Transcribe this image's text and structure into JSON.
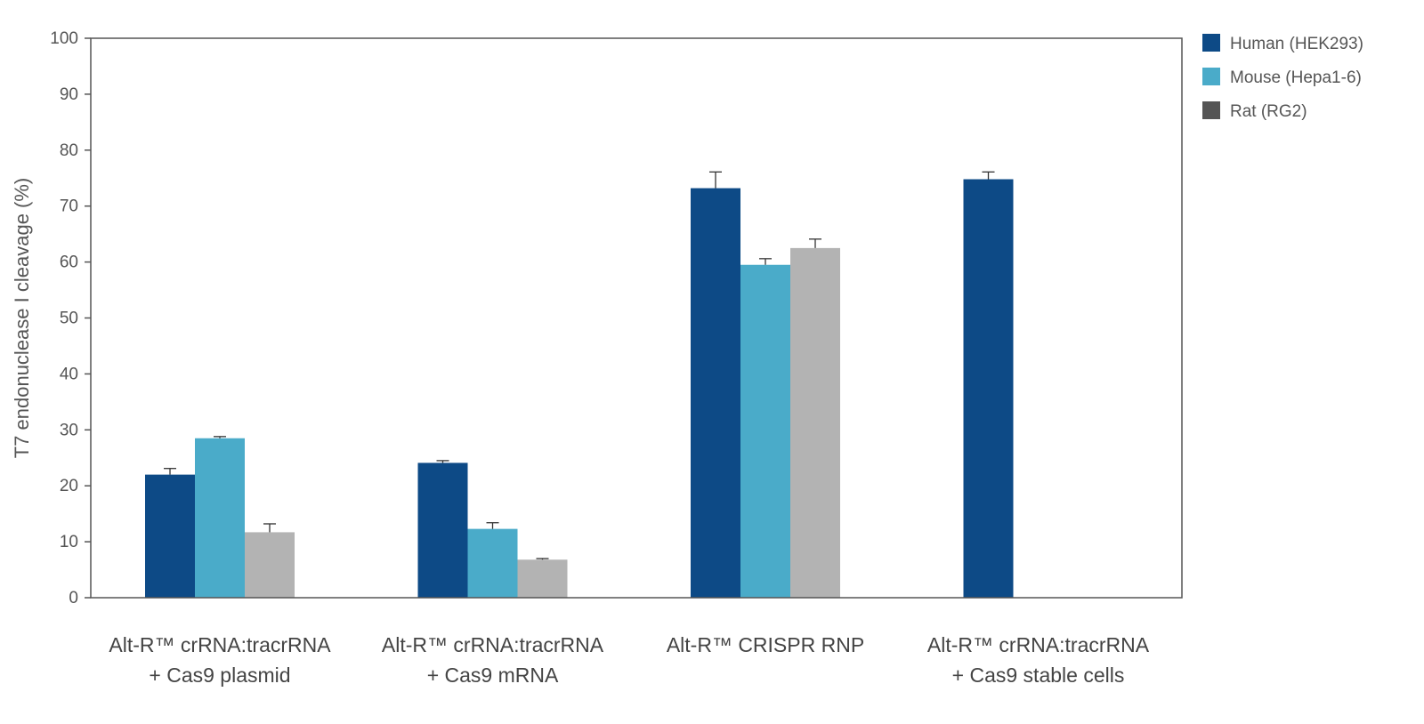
{
  "chart_data": {
    "type": "bar",
    "title": "",
    "xlabel": "",
    "ylabel": "T7 endonuclease I cleavage (%)",
    "ylim": [
      0,
      100
    ],
    "yticks": [
      0,
      10,
      20,
      30,
      40,
      50,
      60,
      70,
      80,
      90,
      100
    ],
    "grid": false,
    "legend_position": "top-right",
    "categories": [
      {
        "line1": "Alt-R™ crRNA:tracrRNA",
        "line2": "+ Cas9 plasmid"
      },
      {
        "line1": "Alt-R™ crRNA:tracrRNA",
        "line2": "+ Cas9 mRNA"
      },
      {
        "line1": "Alt-R™ CRISPR RNP",
        "line2": ""
      },
      {
        "line1": "Alt-R™ crRNA:tracrRNA",
        "line2": "+ Cas9 stable cells"
      }
    ],
    "series": [
      {
        "name": "Human (HEK293)",
        "color": "#0d4a86",
        "legend_color": "#0d4a86",
        "values": [
          22.0,
          24.1,
          73.2,
          74.8
        ],
        "errors": [
          1.1,
          0.4,
          2.9,
          1.3
        ]
      },
      {
        "name": "Mouse (Hepa1-6)",
        "color": "#4aabc9",
        "legend_color": "#4aabc9",
        "values": [
          28.5,
          12.3,
          59.5,
          null
        ],
        "errors": [
          0.3,
          1.1,
          1.1,
          null
        ]
      },
      {
        "name": "Rat (RG2)",
        "color": "#b3b3b3",
        "legend_color": "#555555",
        "values": [
          11.7,
          6.8,
          62.5,
          null
        ],
        "errors": [
          1.5,
          0.2,
          1.6,
          null
        ]
      }
    ]
  }
}
